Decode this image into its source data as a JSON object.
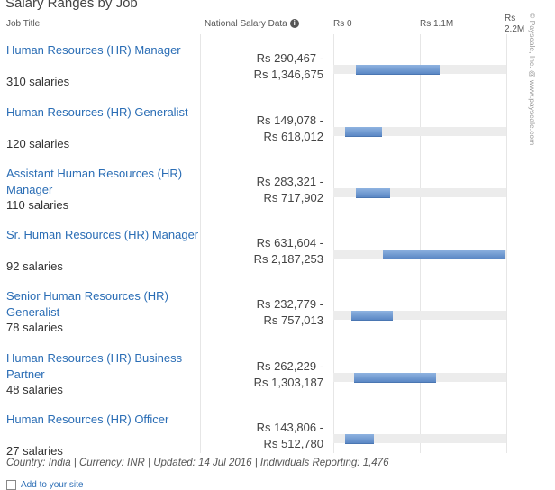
{
  "header": {
    "title": "Salary Ranges by Job",
    "col_job": "Job Title",
    "col_national": "National Salary Data",
    "info_glyph": "i"
  },
  "axis": {
    "ticks": [
      "Rs 0",
      "Rs 1.1M",
      "Rs 2.2M"
    ]
  },
  "footer": {
    "text": "Country: India | Currency: INR | Updated: 14 Jul 2016 | Individuals Reporting: 1,476",
    "add_to_site": "Add to your site"
  },
  "credit": "© Payscale, Inc. @ www.payscale.com",
  "colors": {
    "link": "#2a6db5",
    "bar": "#5b88c5",
    "track": "#ececec"
  },
  "chart_data": {
    "type": "bar",
    "title": "Salary Ranges by Job",
    "xlabel": "",
    "ylabel": "Job Title",
    "xlim": [
      0,
      2200000
    ],
    "grid": true,
    "categories": [
      "Human Resources (HR) Manager",
      "Human Resources (HR) Generalist",
      "Assistant Human Resources (HR) Manager",
      "Sr. Human Resources (HR) Manager",
      "Senior Human Resources (HR) Generalist",
      "Human Resources (HR) Business Partner",
      "Human Resources (HR) Officer"
    ],
    "rows": [
      {
        "job": "Human Resources (HR) Manager",
        "count_label": "310 salaries",
        "low_label": "Rs 290,467 -",
        "high_label": "Rs 1,346,675",
        "low": 290467,
        "high": 1346675
      },
      {
        "job": "Human Resources (HR) Generalist",
        "count_label": "120 salaries",
        "low_label": "Rs 149,078 -",
        "high_label": "Rs 618,012",
        "low": 149078,
        "high": 618012
      },
      {
        "job": "Assistant Human Resources (HR) Manager",
        "count_label": "110 salaries",
        "low_label": "Rs 283,321 -",
        "high_label": "Rs 717,902",
        "low": 283321,
        "high": 717902
      },
      {
        "job": "Sr. Human Resources (HR) Manager",
        "count_label": "92 salaries",
        "low_label": "Rs 631,604 -",
        "high_label": "Rs 2,187,253",
        "low": 631604,
        "high": 2187253
      },
      {
        "job": "Senior Human Resources (HR) Generalist",
        "count_label": "78 salaries",
        "low_label": "Rs 232,779 -",
        "high_label": "Rs 757,013",
        "low": 232779,
        "high": 757013
      },
      {
        "job": "Human Resources (HR) Business Partner",
        "count_label": "48 salaries",
        "low_label": "Rs 262,229 -",
        "high_label": "Rs 1,303,187",
        "low": 262229,
        "high": 1303187
      },
      {
        "job": "Human Resources (HR) Officer",
        "count_label": "27 salaries",
        "low_label": "Rs 143,806 -",
        "high_label": "Rs 512,780",
        "low": 143806,
        "high": 512780
      }
    ]
  }
}
